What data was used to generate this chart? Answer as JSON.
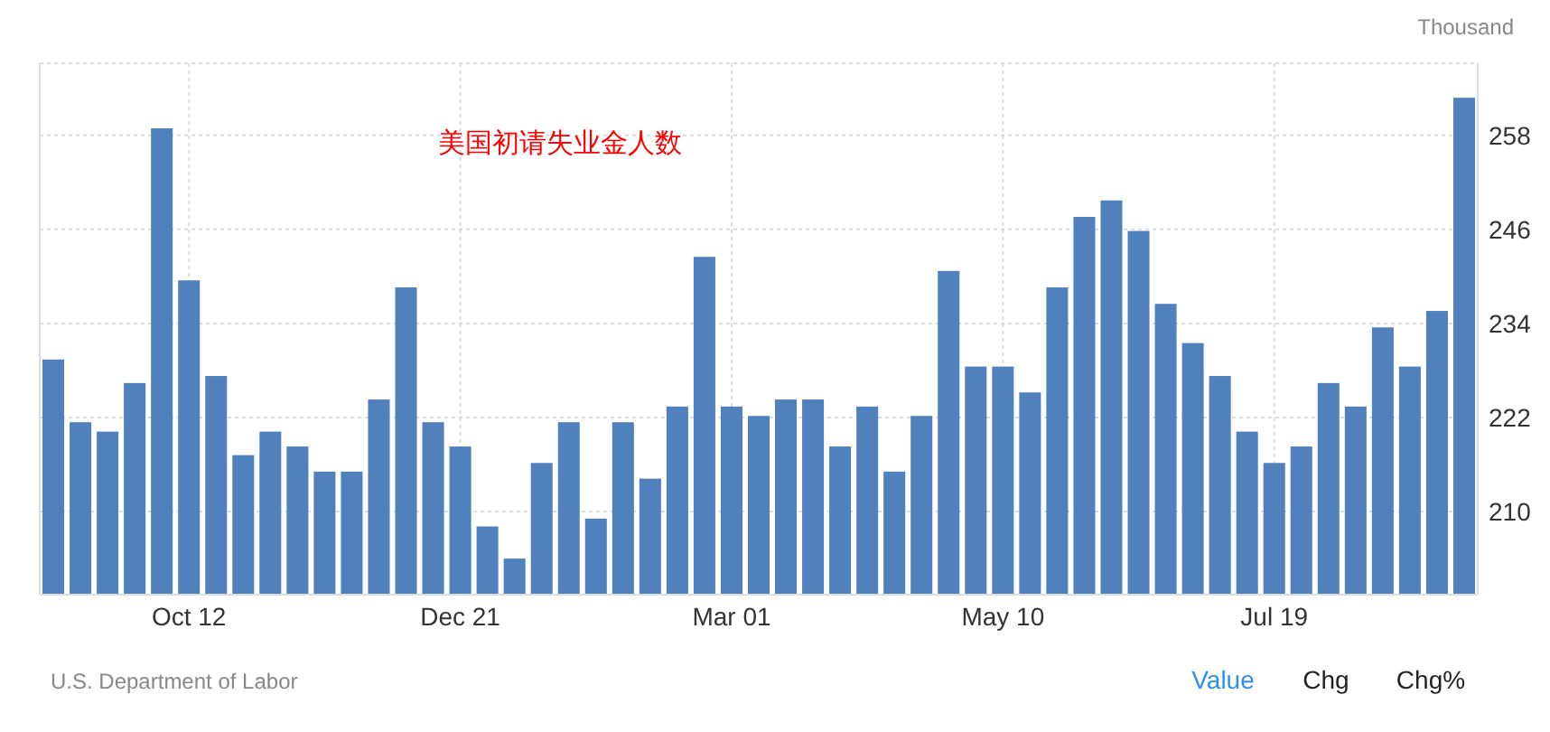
{
  "chart_data": {
    "type": "bar",
    "title": "美国初请失业金人数",
    "ylabel": "Thousand",
    "categories": [
      null,
      null,
      null,
      null,
      null,
      "Oct 12",
      null,
      null,
      null,
      null,
      null,
      null,
      null,
      null,
      null,
      "Dec 21",
      null,
      null,
      null,
      null,
      null,
      null,
      null,
      null,
      null,
      "Mar 01",
      null,
      null,
      null,
      null,
      null,
      null,
      null,
      null,
      null,
      "May 10",
      null,
      null,
      null,
      null,
      null,
      null,
      null,
      null,
      null,
      "Jul 19",
      null,
      null,
      null,
      null,
      null,
      null,
      null
    ],
    "values": [
      229.4,
      221.4,
      220.2,
      226.4,
      258.9,
      239.5,
      227.3,
      217.2,
      220.2,
      218.3,
      215.1,
      215.1,
      224.3,
      238.6,
      221.4,
      218.3,
      208.1,
      204.0,
      216.2,
      221.4,
      209.1,
      221.4,
      214.2,
      223.4,
      242.5,
      223.4,
      222.2,
      224.3,
      224.3,
      218.3,
      223.4,
      215.1,
      222.2,
      240.7,
      228.5,
      228.5,
      225.2,
      238.6,
      247.6,
      249.7,
      245.8,
      236.5,
      231.5,
      227.3,
      220.2,
      216.2,
      218.3,
      226.4,
      223.4,
      233.5,
      228.5,
      235.6,
      262.8
    ],
    "color": "#5081bd",
    "ylim": [
      199.4,
      267.2
    ],
    "yticks": [
      210,
      222,
      234,
      246,
      258
    ],
    "grid": true,
    "annotations": [
      "U.S. Department of Labor",
      "Value",
      "Chg",
      "Chg%"
    ]
  }
}
